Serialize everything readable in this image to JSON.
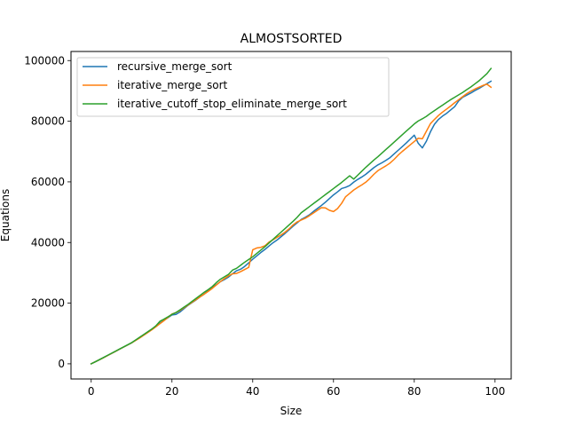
{
  "chart_data": {
    "type": "line",
    "title": "ALMOSTSORTED",
    "xlabel": "Size",
    "ylabel": "Equations",
    "xlim": [
      -5,
      104
    ],
    "ylim": [
      -5000,
      103000
    ],
    "xticks": [
      0,
      20,
      40,
      60,
      80,
      100
    ],
    "yticks": [
      0,
      20000,
      40000,
      60000,
      80000,
      100000
    ],
    "grid": false,
    "legend_position": "upper-left",
    "x_start": 0,
    "x_step": 1,
    "series": [
      {
        "name": "recursive_merge_sort",
        "color": "#1f77b4",
        "values": [
          0,
          650,
          1320,
          2000,
          2700,
          3400,
          4100,
          4800,
          5500,
          6200,
          6900,
          7800,
          8700,
          9600,
          10500,
          11400,
          12400,
          13400,
          14300,
          15200,
          16100,
          16300,
          17100,
          18200,
          19300,
          20200,
          21100,
          22100,
          23000,
          24200,
          25200,
          26100,
          27100,
          27800,
          28600,
          29700,
          30700,
          31200,
          32100,
          33300,
          34500,
          35600,
          36700,
          37700,
          38800,
          39900,
          40800,
          41900,
          43000,
          44200,
          45400,
          46500,
          47600,
          48300,
          49100,
          50200,
          51200,
          52200,
          53300,
          54500,
          55700,
          56700,
          57800,
          58200,
          58800,
          59900,
          60800,
          61600,
          62500,
          63600,
          64700,
          65600,
          66300,
          67100,
          68000,
          69200,
          70400,
          71600,
          72800,
          74100,
          75400,
          72700,
          71200,
          73400,
          76500,
          79000,
          80600,
          81700,
          82600,
          83700,
          84800,
          86700,
          87900,
          88600,
          89300,
          90100,
          90800,
          91600,
          92400,
          93200
        ]
      },
      {
        "name": "iterative_merge_sort",
        "color": "#ff7f0e",
        "values": [
          0,
          650,
          1300,
          1980,
          2680,
          3380,
          4100,
          4800,
          5500,
          6200,
          6900,
          7700,
          8500,
          9400,
          10300,
          11200,
          12200,
          13200,
          14200,
          15300,
          16400,
          16900,
          17600,
          18500,
          19400,
          20300,
          21200,
          22100,
          23000,
          23900,
          24900,
          26000,
          27100,
          28100,
          29000,
          29700,
          29800,
          30400,
          31100,
          31800,
          37600,
          38200,
          38400,
          38900,
          40100,
          40900,
          41700,
          42500,
          43400,
          44500,
          45800,
          46800,
          47400,
          48000,
          48800,
          49700,
          50600,
          51500,
          51400,
          50600,
          50200,
          51200,
          52900,
          55100,
          56200,
          57300,
          58200,
          59000,
          59900,
          61100,
          62500,
          63700,
          64500,
          65300,
          66200,
          67400,
          68800,
          70000,
          71100,
          72200,
          73300,
          74400,
          74200,
          76700,
          79200,
          80600,
          81900,
          83000,
          84000,
          85000,
          86100,
          87100,
          88100,
          89100,
          89900,
          90600,
          91200,
          91800,
          92200,
          91200
        ]
      },
      {
        "name": "iterative_cutoff_stop_eliminate_merge_sort",
        "color": "#2ca02c",
        "values": [
          0,
          650,
          1350,
          2050,
          2750,
          3450,
          4150,
          4850,
          5550,
          6250,
          6950,
          7850,
          8750,
          9650,
          10550,
          11450,
          12500,
          14000,
          14700,
          15500,
          16300,
          16900,
          17800,
          18700,
          19600,
          20600,
          21600,
          22600,
          23600,
          24500,
          25500,
          26800,
          27900,
          28700,
          29500,
          30900,
          31500,
          32500,
          33500,
          34400,
          35300,
          36400,
          37500,
          38600,
          39800,
          41000,
          42200,
          43400,
          44600,
          45800,
          47000,
          48300,
          49800,
          50800,
          51800,
          52800,
          53800,
          54800,
          55800,
          56800,
          57800,
          58800,
          59800,
          60900,
          62000,
          60900,
          62200,
          63500,
          64800,
          66000,
          67200,
          68300,
          69500,
          70700,
          71900,
          73100,
          74300,
          75500,
          76700,
          77900,
          79100,
          80100,
          80800,
          81600,
          82600,
          83500,
          84400,
          85300,
          86200,
          87100,
          87900,
          88700,
          89500,
          90400,
          91300,
          92300,
          93300,
          94500,
          95700,
          97400
        ]
      }
    ]
  }
}
